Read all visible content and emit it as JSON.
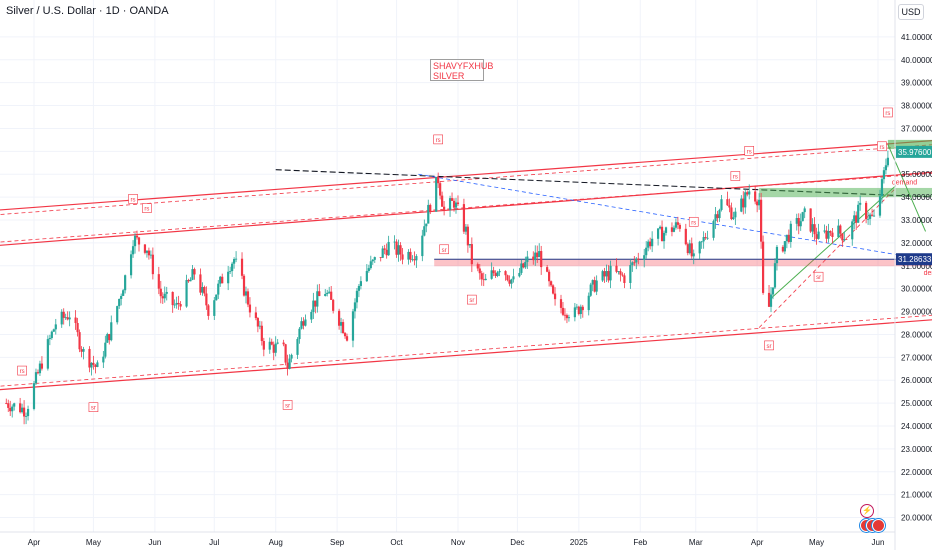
{
  "header": {
    "title": "Silver / U.S. Dollar · 1D · OANDA",
    "currency": "USD"
  },
  "annotation": {
    "line1": "SHAVYFXHUB",
    "line2": "SILVER"
  },
  "price_labels": {
    "current": "35.97600",
    "level": "31.28633"
  },
  "zone_labels": {
    "demand": "demand",
    "dem": "dem"
  },
  "colors": {
    "up": "#26a69a",
    "down": "#f23645",
    "channel": "#f23645",
    "support_line": "#f7525f",
    "zone_green": "#4caf50",
    "dashed_blue": "#2962ff",
    "current_label_bg": "#26a69a",
    "level_label_bg": "#1e3a8a"
  },
  "markers": {
    "resistance": "rs",
    "support": "sr"
  },
  "icons": [
    "lightning-icon",
    "flag-icon"
  ],
  "chart_data": {
    "type": "candlestick",
    "title": "Silver / U.S. Dollar · 1D · OANDA",
    "ylim": [
      19.5,
      42.0
    ],
    "y_ticks": [
      20,
      21,
      22,
      23,
      24,
      25,
      26,
      27,
      28,
      29,
      30,
      31,
      32,
      33,
      34,
      35,
      36,
      37,
      38,
      39,
      40,
      41
    ],
    "y_tick_labels": [
      "20.00000",
      "21.00000",
      "22.00000",
      "23.00000",
      "24.00000",
      "25.00000",
      "26.00000",
      "27.00000",
      "28.00000",
      "29.00000",
      "30.00000",
      "31.00000",
      "32.00000",
      "33.00000",
      "34.00000",
      "35.00000",
      "36.00000",
      "37.00000",
      "38.00000",
      "39.00000",
      "40.00000",
      "41.00000"
    ],
    "x_tick_labels": [
      "Apr",
      "May",
      "Jun",
      "Jul",
      "Aug",
      "Sep",
      "Oct",
      "Nov",
      "Dec",
      "2025",
      "Feb",
      "Mar",
      "Apr",
      "May",
      "Jun"
    ],
    "x_tick_dates": [
      "2024-04-01",
      "2024-05-01",
      "2024-06-01",
      "2024-07-01",
      "2024-08-01",
      "2024-09-01",
      "2024-10-01",
      "2024-11-01",
      "2024-12-01",
      "2025-01-01",
      "2025-02-01",
      "2025-03-01",
      "2025-04-01",
      "2025-05-01",
      "2025-06-01"
    ],
    "current_price": 35.976,
    "horizontal_level": 31.28633,
    "price_path": [
      {
        "date": "2024-03-18",
        "close": 25.0
      },
      {
        "date": "2024-03-28",
        "close": 24.7
      },
      {
        "date": "2024-04-05",
        "close": 26.8
      },
      {
        "date": "2024-04-12",
        "close": 28.5
      },
      {
        "date": "2024-04-19",
        "close": 28.9
      },
      {
        "date": "2024-04-26",
        "close": 27.2
      },
      {
        "date": "2024-05-03",
        "close": 26.5
      },
      {
        "date": "2024-05-10",
        "close": 28.3
      },
      {
        "date": "2024-05-17",
        "close": 30.5
      },
      {
        "date": "2024-05-21",
        "close": 32.2
      },
      {
        "date": "2024-05-28",
        "close": 31.8
      },
      {
        "date": "2024-06-04",
        "close": 29.7
      },
      {
        "date": "2024-06-12",
        "close": 29.2
      },
      {
        "date": "2024-06-21",
        "close": 30.7
      },
      {
        "date": "2024-06-28",
        "close": 29.1
      },
      {
        "date": "2024-07-08",
        "close": 31.0
      },
      {
        "date": "2024-07-11",
        "close": 31.3
      },
      {
        "date": "2024-07-19",
        "close": 29.2
      },
      {
        "date": "2024-07-26",
        "close": 27.6
      },
      {
        "date": "2024-08-05",
        "close": 27.3
      },
      {
        "date": "2024-08-07",
        "close": 26.6
      },
      {
        "date": "2024-08-16",
        "close": 29.0
      },
      {
        "date": "2024-08-26",
        "close": 29.9
      },
      {
        "date": "2024-09-06",
        "close": 28.0
      },
      {
        "date": "2024-09-13",
        "close": 30.5
      },
      {
        "date": "2024-09-20",
        "close": 31.2
      },
      {
        "date": "2024-09-27",
        "close": 31.9
      },
      {
        "date": "2024-10-04",
        "close": 31.5
      },
      {
        "date": "2024-10-11",
        "close": 31.6
      },
      {
        "date": "2024-10-18",
        "close": 33.7
      },
      {
        "date": "2024-10-22",
        "close": 34.8
      },
      {
        "date": "2024-10-25",
        "close": 33.4
      },
      {
        "date": "2024-10-30",
        "close": 33.8
      },
      {
        "date": "2024-11-05",
        "close": 32.5
      },
      {
        "date": "2024-11-08",
        "close": 31.2
      },
      {
        "date": "2024-11-14",
        "close": 30.2
      },
      {
        "date": "2024-11-22",
        "close": 31.0
      },
      {
        "date": "2024-11-29",
        "close": 30.3
      },
      {
        "date": "2024-12-06",
        "close": 31.2
      },
      {
        "date": "2024-12-12",
        "close": 31.5
      },
      {
        "date": "2024-12-20",
        "close": 29.3
      },
      {
        "date": "2024-12-30",
        "close": 28.9
      },
      {
        "date": "2025-01-10",
        "close": 30.3
      },
      {
        "date": "2025-01-17",
        "close": 30.7
      },
      {
        "date": "2025-01-24",
        "close": 30.5
      },
      {
        "date": "2025-01-31",
        "close": 31.4
      },
      {
        "date": "2025-02-07",
        "close": 32.2
      },
      {
        "date": "2025-02-14",
        "close": 32.5
      },
      {
        "date": "2025-02-21",
        "close": 32.8
      },
      {
        "date": "2025-02-28",
        "close": 31.2
      },
      {
        "date": "2025-03-07",
        "close": 32.5
      },
      {
        "date": "2025-03-14",
        "close": 33.8
      },
      {
        "date": "2025-03-21",
        "close": 33.2
      },
      {
        "date": "2025-03-28",
        "close": 34.3
      },
      {
        "date": "2025-04-02",
        "close": 33.9
      },
      {
        "date": "2025-04-04",
        "close": 29.6
      },
      {
        "date": "2025-04-07",
        "close": 29.2
      },
      {
        "date": "2025-04-11",
        "close": 31.5
      },
      {
        "date": "2025-04-18",
        "close": 32.5
      },
      {
        "date": "2025-04-25",
        "close": 33.2
      },
      {
        "date": "2025-05-02",
        "close": 32.2
      },
      {
        "date": "2025-05-09",
        "close": 32.6
      },
      {
        "date": "2025-05-16",
        "close": 32.3
      },
      {
        "date": "2025-05-23",
        "close": 33.5
      },
      {
        "date": "2025-05-30",
        "close": 33.0
      },
      {
        "date": "2025-06-03",
        "close": 34.5
      },
      {
        "date": "2025-06-06",
        "close": 35.976
      }
    ],
    "series": [
      {
        "name": "rs",
        "values": [
          "2024-03-26",
          "2024-05-21",
          "2024-05-28",
          "2024-10-22",
          "2025-02-28",
          "2025-03-21",
          "2025-03-28",
          "2025-06-03",
          "2025-06-06"
        ]
      },
      {
        "name": "sr",
        "values": [
          "2024-05-01",
          "2024-08-07",
          "2024-10-25",
          "2024-11-08",
          "2025-04-07",
          "2025-05-02"
        ]
      }
    ]
  }
}
